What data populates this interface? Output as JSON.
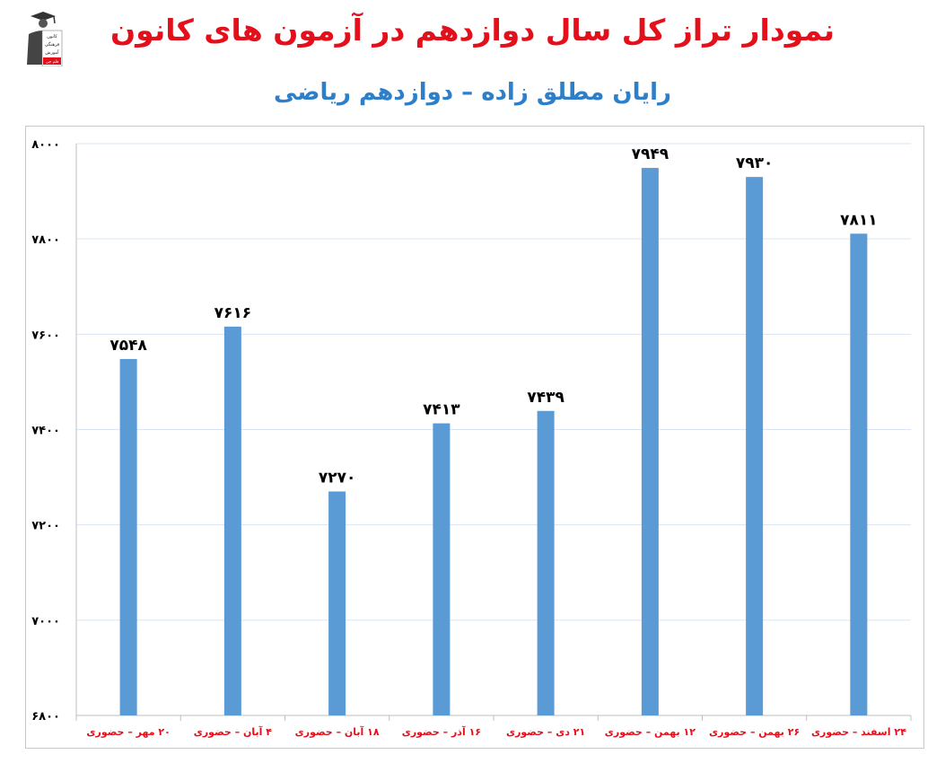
{
  "header": {
    "title": "نمودار تراز کل سال دوازدهم در آزمون های کانون",
    "subtitle": "رایان مطلق زاده – دوازدهم ریاضی"
  },
  "logo": {
    "icon": "graduate-logo-icon",
    "text": [
      "کانون",
      "فرهنگی",
      "آموزش",
      "قلم چی"
    ]
  },
  "colors": {
    "title": "#e3101b",
    "subtitle": "#2f7fc8",
    "bar": "#5b9bd5",
    "category_label": "#e3101b",
    "value_label": "#000000",
    "grid": "#d9e5f2"
  },
  "chart_data": {
    "type": "bar",
    "categories": [
      "۲۰ مهر – حضوری",
      "۴ آبان – حضوری",
      "۱۸ آبان – حضوری",
      "۱۶ آذر – حضوری",
      "۲۱ دی – حضوری",
      "۱۲ بهمن – حضوری",
      "۲۶ بهمن – حضوری",
      "۲۴ اسفند – حضوری"
    ],
    "values": [
      7548,
      7616,
      7270,
      7413,
      7439,
      7949,
      7930,
      7811
    ],
    "value_labels": [
      "۷۵۴۸",
      "۷۶۱۶",
      "۷۲۷۰",
      "۷۴۱۳",
      "۷۴۳۹",
      "۷۹۴۹",
      "۷۹۳۰",
      "۷۸۱۱"
    ],
    "yticks": [
      6800,
      7000,
      7200,
      7400,
      7600,
      7800,
      8000
    ],
    "ytick_labels": [
      "۶۸۰۰",
      "۷۰۰۰",
      "۷۲۰۰",
      "۷۴۰۰",
      "۷۶۰۰",
      "۷۸۰۰",
      "۸۰۰۰"
    ],
    "ylim": [
      6800,
      8000
    ],
    "grid": true,
    "legend": "none"
  }
}
